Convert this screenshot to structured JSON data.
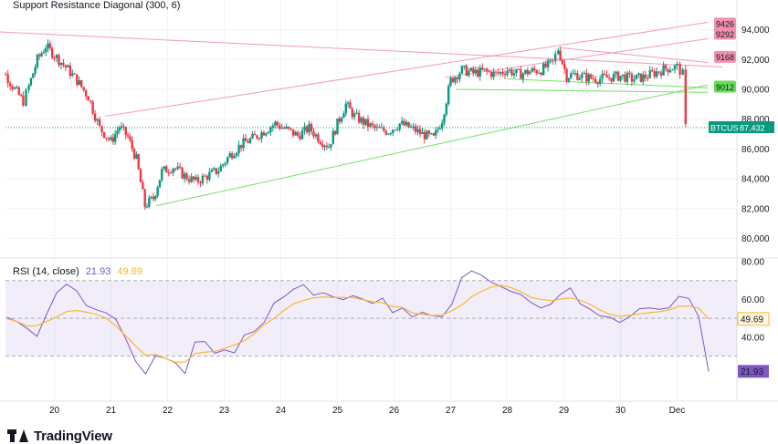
{
  "indicator_title": "Support Resistance Diagonal (300, 6)",
  "rsi_title": {
    "label": "RSI (14, close)",
    "value": "21.93",
    "ma_value": "49.69"
  },
  "brand": "TradingView",
  "colors": {
    "up": "#089981",
    "down": "#f23645",
    "rsi": "#7e57c2",
    "rsi_ma": "#f7b733",
    "resistance": "#f48fb1",
    "support": "#66dd55",
    "price_line": "#089981"
  },
  "chart_data": [
    {
      "type": "candlestick",
      "symbol": "BTCUSD",
      "title": "Support Resistance Diagonal (300, 6)",
      "x_ticks": [
        "20",
        "21",
        "22",
        "23",
        "24",
        "25",
        "26",
        "27",
        "28",
        "29",
        "30",
        "Dec"
      ],
      "y_ticks": [
        "80,000",
        "82,000",
        "84,000",
        "86,000",
        "88,000",
        "90,000",
        "92,000",
        "94,000"
      ],
      "ylim": [
        79000,
        95500
      ],
      "last_price": 87432,
      "last_price_label": "87,432",
      "price_tags": [
        {
          "label": "9426",
          "value": 94380
        },
        {
          "label": "9292",
          "value": 93700
        },
        {
          "label": "9168",
          "value": 92150
        },
        {
          "label": "9012",
          "value": 90150
        }
      ],
      "anchors": [
        {
          "d": 18.9,
          "p": 92000
        },
        {
          "d": 19.1,
          "p": 91200
        },
        {
          "d": 19.3,
          "p": 90000
        },
        {
          "d": 19.45,
          "p": 89200
        },
        {
          "d": 19.55,
          "p": 90200
        },
        {
          "d": 19.7,
          "p": 92000
        },
        {
          "d": 19.85,
          "p": 92900
        },
        {
          "d": 20.0,
          "p": 92300
        },
        {
          "d": 20.2,
          "p": 91500
        },
        {
          "d": 20.4,
          "p": 90600
        },
        {
          "d": 20.6,
          "p": 89500
        },
        {
          "d": 20.8,
          "p": 87400
        },
        {
          "d": 21.0,
          "p": 86500
        },
        {
          "d": 21.15,
          "p": 87500
        },
        {
          "d": 21.3,
          "p": 86800
        },
        {
          "d": 21.45,
          "p": 85300
        },
        {
          "d": 21.6,
          "p": 82200
        },
        {
          "d": 21.75,
          "p": 82700
        },
        {
          "d": 21.9,
          "p": 84500
        },
        {
          "d": 22.1,
          "p": 84800
        },
        {
          "d": 22.3,
          "p": 84200
        },
        {
          "d": 22.5,
          "p": 83800
        },
        {
          "d": 22.7,
          "p": 84200
        },
        {
          "d": 22.9,
          "p": 84600
        },
        {
          "d": 23.1,
          "p": 85600
        },
        {
          "d": 23.3,
          "p": 86300
        },
        {
          "d": 23.5,
          "p": 86700
        },
        {
          "d": 23.7,
          "p": 87200
        },
        {
          "d": 23.9,
          "p": 87700
        },
        {
          "d": 24.1,
          "p": 87300
        },
        {
          "d": 24.3,
          "p": 86900
        },
        {
          "d": 24.5,
          "p": 87400
        },
        {
          "d": 24.7,
          "p": 86600
        },
        {
          "d": 24.85,
          "p": 86200
        },
        {
          "d": 25.0,
          "p": 87700
        },
        {
          "d": 25.15,
          "p": 89000
        },
        {
          "d": 25.3,
          "p": 88200
        },
        {
          "d": 25.5,
          "p": 87700
        },
        {
          "d": 25.7,
          "p": 87300
        },
        {
          "d": 25.9,
          "p": 87200
        },
        {
          "d": 26.1,
          "p": 87700
        },
        {
          "d": 26.3,
          "p": 87400
        },
        {
          "d": 26.5,
          "p": 87000
        },
        {
          "d": 26.7,
          "p": 86700
        },
        {
          "d": 26.85,
          "p": 88000
        },
        {
          "d": 27.0,
          "p": 90600
        },
        {
          "d": 27.2,
          "p": 91300
        },
        {
          "d": 27.4,
          "p": 91100
        },
        {
          "d": 27.6,
          "p": 91200
        },
        {
          "d": 27.8,
          "p": 91000
        },
        {
          "d": 28.0,
          "p": 91300
        },
        {
          "d": 28.2,
          "p": 91000
        },
        {
          "d": 28.4,
          "p": 91200
        },
        {
          "d": 28.6,
          "p": 91300
        },
        {
          "d": 28.8,
          "p": 91800
        },
        {
          "d": 28.9,
          "p": 92700
        },
        {
          "d": 29.05,
          "p": 90900
        },
        {
          "d": 29.2,
          "p": 91000
        },
        {
          "d": 29.4,
          "p": 90800
        },
        {
          "d": 29.6,
          "p": 90700
        },
        {
          "d": 29.8,
          "p": 90800
        },
        {
          "d": 30.0,
          "p": 90900
        },
        {
          "d": 30.2,
          "p": 90700
        },
        {
          "d": 30.4,
          "p": 90800
        },
        {
          "d": 30.6,
          "p": 91100
        },
        {
          "d": 30.8,
          "p": 91400
        },
        {
          "d": 31.0,
          "p": 91500
        },
        {
          "d": 31.1,
          "p": 91000
        },
        {
          "d": 31.15,
          "p": 87432
        }
      ],
      "lines": [
        {
          "role": "resistance",
          "from": {
            "d": 18.75,
            "p": 93900
          },
          "to": {
            "d": 31.8,
            "p": 91500
          }
        },
        {
          "role": "resistance",
          "from": {
            "d": 20.9,
            "p": 88200
          },
          "to": {
            "d": 31.55,
            "p": 94500
          }
        },
        {
          "role": "resistance",
          "from": {
            "d": 26.9,
            "p": 90800
          },
          "to": {
            "d": 31.55,
            "p": 93400
          }
        },
        {
          "role": "resistance",
          "from": {
            "d": 28.9,
            "p": 92800
          },
          "to": {
            "d": 31.55,
            "p": 91800
          }
        },
        {
          "role": "support",
          "from": {
            "d": 21.8,
            "p": 82200
          },
          "to": {
            "d": 31.55,
            "p": 90300
          }
        },
        {
          "role": "support",
          "from": {
            "d": 27.1,
            "p": 90000
          },
          "to": {
            "d": 31.55,
            "p": 89800
          }
        },
        {
          "role": "support",
          "from": {
            "d": 28.0,
            "p": 90700
          },
          "to": {
            "d": 31.55,
            "p": 90100
          }
        }
      ]
    },
    {
      "type": "line",
      "title": "RSI (14, close)",
      "y_ticks": [
        "40.00",
        "60.00",
        "80.00"
      ],
      "ylim": [
        10,
        81
      ],
      "bands": {
        "upper": 70,
        "middle": 50,
        "lower": 30
      },
      "series": [
        {
          "name": "RSI",
          "values": [
            50.5,
            48.2,
            44.7,
            40.5,
            52.5,
            63.6,
            68.1,
            64.7,
            56.8,
            54.6,
            52.9,
            49.4,
            39.1,
            27.2,
            20.6,
            30.2,
            28.8,
            26.5,
            20.8,
            37.5,
            37.7,
            31.5,
            33.3,
            31.7,
            41.2,
            43.0,
            47.8,
            58.1,
            61.4,
            65.5,
            67.8,
            62.3,
            63.5,
            61.4,
            59.9,
            62.0,
            60.2,
            57.8,
            60.7,
            53.0,
            55.5,
            50.7,
            53.2,
            51.4,
            50.8,
            57.5,
            71.6,
            75.1,
            72.9,
            69.1,
            66.8,
            64.3,
            62.6,
            58.5,
            55.5,
            57.4,
            62.7,
            66.1,
            57.7,
            54.8,
            51.3,
            50.6,
            47.8,
            50.8,
            55.1,
            55.5,
            54.8,
            55.6,
            61.7,
            60.5,
            50.9,
            21.9
          ]
        },
        {
          "name": "MA",
          "values": [
            49.8,
            48.3,
            45.9,
            46.2,
            48.4,
            50.8,
            53.6,
            54.2,
            53.3,
            52.1,
            50.1,
            46.0,
            40.7,
            35.3,
            30.4,
            30.7,
            28.8,
            26.8,
            26.8,
            31.3,
            32.1,
            32.5,
            34.1,
            35.9,
            38.2,
            41.8,
            46.6,
            50.0,
            54.2,
            57.8,
            59.5,
            60.8,
            61.4,
            61.0,
            61.1,
            61.0,
            59.9,
            58.8,
            58.2,
            56.3,
            55.8,
            52.9,
            52.2,
            51.5,
            51.6,
            54.0,
            57.0,
            61.4,
            64.3,
            66.6,
            67.5,
            66.3,
            64.1,
            61.1,
            60.1,
            59.4,
            60.2,
            60.8,
            59.7,
            57.4,
            54.4,
            52.1,
            51.1,
            51.6,
            52.3,
            53.0,
            53.5,
            54.4,
            56.4,
            56.5,
            55.4,
            49.7
          ]
        }
      ],
      "last_value_label": "21.93",
      "ma_value_label": "49.69"
    }
  ]
}
